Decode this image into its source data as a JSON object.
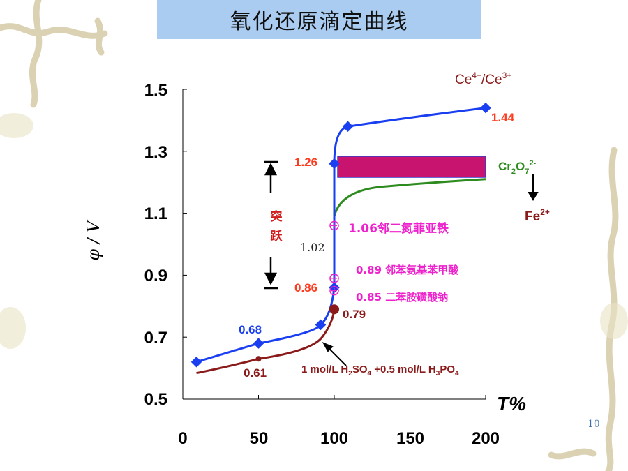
{
  "slide": {
    "title": "氧化还原滴定曲线",
    "page_number": "10"
  },
  "chart_data": {
    "type": "line",
    "xlabel": "T%",
    "ylabel": "φ / V",
    "xlim": [
      0,
      200
    ],
    "ylim": [
      0.5,
      1.5
    ],
    "x_ticks": [
      "0",
      "50",
      "100",
      "150",
      "200"
    ],
    "y_ticks": [
      "0.5",
      "0.7",
      "0.9",
      "1.1",
      "1.3",
      "1.5"
    ],
    "grid": false,
    "series": [
      {
        "name": "Ce4+/Ce3+",
        "color": "#1a3ff0",
        "x": [
          9,
          50,
          91,
          100,
          100,
          100,
          109,
          200
        ],
        "y": [
          0.62,
          0.68,
          0.74,
          0.86,
          1.06,
          1.26,
          1.38,
          1.44
        ]
      },
      {
        "name": "1 mol/L H2SO4 +0.5 mol/L H3PO4",
        "color": "#8b1a1a",
        "x": [
          50,
          100
        ],
        "y": [
          0.63,
          0.79
        ]
      },
      {
        "name": "Cr2O7 2-",
        "color": "#2e8b20",
        "x": [
          100,
          200
        ],
        "y": [
          1.09,
          1.21
        ]
      }
    ],
    "labels": {
      "l068": "0.68",
      "l061": "0.61",
      "l086": "0.86",
      "l079": "0.79",
      "l126": "1.26",
      "l144": "1.44",
      "l102": "1.02",
      "ind106": "1.06邻二氮菲亚铁",
      "ind089": "0.89  邻苯氨基苯甲酸",
      "ind085": "0.85  二苯胺磺酸钠",
      "jump1": "突",
      "jump2": "跃",
      "ce_base": "Ce",
      "ce_sup1": "4+",
      "ce_slash": "/Ce",
      "ce_sup2": "3+",
      "cr_base": "Cr",
      "cr_sub1": "2",
      "cr_o": "O",
      "cr_sub2": "7",
      "cr_sup": "2-",
      "fe_base": "Fe",
      "fe_sup": "2+",
      "med_a": "1 mol/L H",
      "med_s1": "2",
      "med_b": "SO",
      "med_s2": "4",
      "med_c": " +0.5 mol/L H",
      "med_s3": "3",
      "med_d": "PO",
      "med_s4": "4"
    },
    "colors": {
      "ce_line": "#1a3ff0",
      "medium_line": "#8b1a1a",
      "cr_line": "#2e8b20",
      "potential_labels": "#ff3b1f",
      "indicator_labels": "#ee22cc",
      "band": "#c8146e",
      "band_border": "#3a3acc",
      "jump_text": "#d01c1c"
    }
  }
}
